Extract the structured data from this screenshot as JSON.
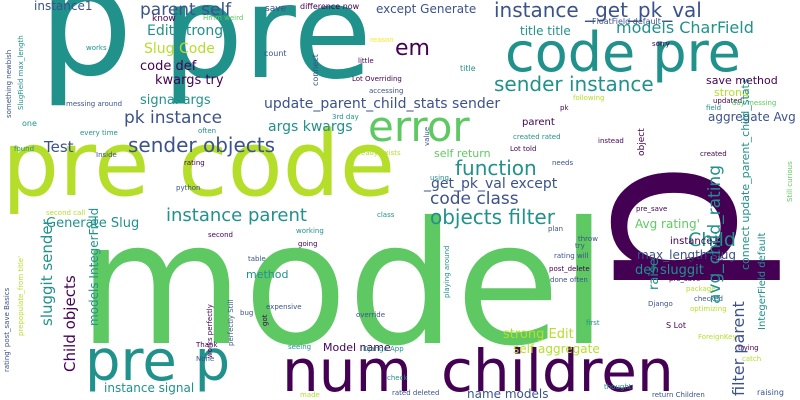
{
  "palette": {
    "dark_purple": "#440154",
    "indigo": "#3b528b",
    "teal": "#21918c",
    "green": "#5ec962",
    "lime": "#b5de2b",
    "yellow": "#fde725"
  },
  "words": [
    {
      "text": "model",
      "color": "#5ec962",
      "orientation": "horizontal"
    },
    {
      "text": "p",
      "color": "#21918c",
      "orientation": "horizontal"
    },
    {
      "text": "pre",
      "color": "#21918c",
      "orientation": "horizontal"
    },
    {
      "text": "pre code",
      "color": "#b5de2b",
      "orientation": "horizontal"
    },
    {
      "text": "code pre",
      "color": "#21918c",
      "orientation": "horizontal"
    },
    {
      "text": "p",
      "color": "#440154",
      "orientation": "vertical"
    },
    {
      "text": "num_children",
      "color": "#440154",
      "orientation": "horizontal"
    },
    {
      "text": "pre p",
      "color": "#21918c",
      "orientation": "horizontal"
    },
    {
      "text": "error",
      "color": "#5ec962",
      "orientation": "horizontal"
    },
    {
      "text": "instance _get_pk_val",
      "color": "#3b528b",
      "orientation": "horizontal"
    },
    {
      "text": "models CharField",
      "color": "#21918c",
      "orientation": "horizontal"
    },
    {
      "text": "sender instance",
      "color": "#21918c",
      "orientation": "horizontal"
    },
    {
      "text": "em",
      "color": "#440154",
      "orientation": "horizontal"
    },
    {
      "text": "parent self",
      "color": "#3b528b",
      "orientation": "horizontal"
    },
    {
      "text": "Edit strong",
      "color": "#21918c",
      "orientation": "horizontal"
    },
    {
      "text": "Slug Code",
      "color": "#b5de2b",
      "orientation": "horizontal"
    },
    {
      "text": "code def",
      "color": "#440154",
      "orientation": "horizontal"
    },
    {
      "text": "kwargs try",
      "color": "#440154",
      "orientation": "horizontal"
    },
    {
      "text": "signal args",
      "color": "#21918c",
      "orientation": "horizontal"
    },
    {
      "text": "update_parent_child_stats sender",
      "color": "#3b528b",
      "orientation": "horizontal"
    },
    {
      "text": "pk instance",
      "color": "#3b528b",
      "orientation": "horizontal"
    },
    {
      "text": "args kwargs",
      "color": "#21918c",
      "orientation": "horizontal"
    },
    {
      "text": "sender objects",
      "color": "#3b528b",
      "orientation": "horizontal"
    },
    {
      "text": "Test",
      "color": "#3b528b",
      "orientation": "horizontal"
    },
    {
      "text": "function",
      "color": "#21918c",
      "orientation": "horizontal"
    },
    {
      "text": "_get_pk_val except",
      "color": "#3b528b",
      "orientation": "horizontal"
    },
    {
      "text": "code class",
      "color": "#3b528b",
      "orientation": "horizontal"
    },
    {
      "text": "objects filter",
      "color": "#21918c",
      "orientation": "horizontal"
    },
    {
      "text": "instance parent",
      "color": "#21918c",
      "orientation": "horizontal"
    },
    {
      "text": "Generate Slug",
      "color": "#21918c",
      "orientation": "horizontal"
    },
    {
      "text": "Child",
      "color": "#21918c",
      "orientation": "horizontal"
    },
    {
      "text": "Avg rating'",
      "color": "#5ec962",
      "orientation": "horizontal"
    },
    {
      "text": "max_length slug",
      "color": "#3b528b",
      "orientation": "horizontal"
    },
    {
      "text": "def sluggit",
      "color": "#21918c",
      "orientation": "horizontal"
    },
    {
      "text": "strong Edit",
      "color": "#b5de2b",
      "orientation": "horizontal"
    },
    {
      "text": "Model name",
      "color": "#440154",
      "orientation": "horizontal"
    },
    {
      "text": "self aggregate",
      "color": "#b5de2b",
      "orientation": "horizontal"
    },
    {
      "text": "instance signal",
      "color": "#21918c",
      "orientation": "horizontal"
    },
    {
      "text": "name models",
      "color": "#3b528b",
      "orientation": "horizontal"
    },
    {
      "text": "except Generate",
      "color": "#3b528b",
      "orientation": "horizontal"
    },
    {
      "text": "title title",
      "color": "#21918c",
      "orientation": "horizontal"
    },
    {
      "text": "aggregate Avg",
      "color": "#3b528b",
      "orientation": "horizontal"
    },
    {
      "text": "save method",
      "color": "#440154",
      "orientation": "horizontal"
    },
    {
      "text": "strong",
      "color": "#b5de2b",
      "orientation": "horizontal"
    },
    {
      "text": "instance1",
      "color": "#3b528b",
      "orientation": "horizontal"
    },
    {
      "text": "know",
      "color": "#440154",
      "orientation": "horizontal"
    },
    {
      "text": "Hmm weird",
      "color": "#5ec962",
      "orientation": "horizontal"
    },
    {
      "text": "save",
      "color": "#3b528b",
      "orientation": "horizontal"
    },
    {
      "text": "difference now",
      "color": "#440154",
      "orientation": "horizontal"
    },
    {
      "text": "FloatField default",
      "color": "#3b528b",
      "orientation": "horizontal"
    },
    {
      "text": "sorry",
      "color": "#440154",
      "orientation": "horizontal"
    },
    {
      "text": "count",
      "color": "#3b528b",
      "orientation": "horizontal"
    },
    {
      "text": "reason",
      "color": "#fde725",
      "orientation": "horizontal"
    },
    {
      "text": "little",
      "color": "#440154",
      "orientation": "horizontal"
    },
    {
      "text": "title",
      "color": "#21918c",
      "orientation": "horizontal"
    },
    {
      "text": "Lot Overriding",
      "color": "#440154",
      "orientation": "horizontal"
    },
    {
      "text": "accessing",
      "color": "#3b528b",
      "orientation": "horizontal"
    },
    {
      "text": "messing around",
      "color": "#3b528b",
      "orientation": "horizontal"
    },
    {
      "text": "every time",
      "color": "#21918c",
      "orientation": "horizontal"
    },
    {
      "text": "often",
      "color": "#21918c",
      "orientation": "horizontal"
    },
    {
      "text": "3rd day",
      "color": "#21918c",
      "orientation": "horizontal"
    },
    {
      "text": "one",
      "color": "#21918c",
      "orientation": "horizontal"
    },
    {
      "text": "found",
      "color": "#21918c",
      "orientation": "horizontal"
    },
    {
      "text": "Inside",
      "color": "#3b528b",
      "orientation": "horizontal"
    },
    {
      "text": "rating",
      "color": "#440154",
      "orientation": "horizontal"
    },
    {
      "text": "python",
      "color": "#3b528b",
      "orientation": "horizontal"
    },
    {
      "text": "second call",
      "color": "#b5de2b",
      "orientation": "horizontal"
    },
    {
      "text": "second",
      "color": "#440154",
      "orientation": "horizontal"
    },
    {
      "text": "working",
      "color": "#21918c",
      "orientation": "horizontal"
    },
    {
      "text": "going",
      "color": "#440154",
      "orientation": "horizontal"
    },
    {
      "text": "table",
      "color": "#3b528b",
      "orientation": "horizontal"
    },
    {
      "text": "method",
      "color": "#21918c",
      "orientation": "horizontal"
    },
    {
      "text": "bug",
      "color": "#3b528b",
      "orientation": "horizontal"
    },
    {
      "text": "expensive",
      "color": "#3b528b",
      "orientation": "horizontal"
    },
    {
      "text": "Thank",
      "color": "#440154",
      "orientation": "horizontal"
    },
    {
      "text": "None",
      "color": "#3b528b",
      "orientation": "horizontal"
    },
    {
      "text": "seeing",
      "color": "#21918c",
      "orientation": "horizontal"
    },
    {
      "text": "Django App",
      "color": "#21918c",
      "orientation": "horizontal"
    },
    {
      "text": "check",
      "color": "#21918c",
      "orientation": "horizontal"
    },
    {
      "text": "made",
      "color": "#b5de2b",
      "orientation": "horizontal"
    },
    {
      "text": "rated deleted",
      "color": "#3b528b",
      "orientation": "horizontal"
    },
    {
      "text": "thought",
      "color": "#21918c",
      "orientation": "horizontal"
    },
    {
      "text": "return Children",
      "color": "#3b528b",
      "orientation": "horizontal"
    },
    {
      "text": "raising",
      "color": "#3b528b",
      "orientation": "horizontal"
    },
    {
      "text": "parent",
      "color": "#440154",
      "orientation": "horizontal"
    },
    {
      "text": "created rated",
      "color": "#21918c",
      "orientation": "horizontal"
    },
    {
      "text": "Lot told",
      "color": "#440154",
      "orientation": "horizontal"
    },
    {
      "text": "self return",
      "color": "#5ec962",
      "orientation": "horizontal"
    },
    {
      "text": "already exists",
      "color": "#b5de2b",
      "orientation": "horizontal"
    },
    {
      "text": "needs",
      "color": "#3b528b",
      "orientation": "horizontal"
    },
    {
      "text": "using",
      "color": "#21918c",
      "orientation": "horizontal"
    },
    {
      "text": "instead",
      "color": "#440154",
      "orientation": "horizontal"
    },
    {
      "text": "created",
      "color": "#440154",
      "orientation": "horizontal"
    },
    {
      "text": "pre_save",
      "color": "#440154",
      "orientation": "horizontal"
    },
    {
      "text": "pre_save'",
      "color": "#440154",
      "orientation": "horizontal"
    },
    {
      "text": "plan",
      "color": "#3b528b",
      "orientation": "horizontal"
    },
    {
      "text": "throw",
      "color": "#3b528b",
      "orientation": "horizontal"
    },
    {
      "text": "try",
      "color": "#3b528b",
      "orientation": "horizontal"
    },
    {
      "text": "rating will",
      "color": "#3b528b",
      "orientation": "horizontal"
    },
    {
      "text": "post_delete",
      "color": "#440154",
      "orientation": "horizontal"
    },
    {
      "text": "done often",
      "color": "#3b528b",
      "orientation": "horizontal"
    },
    {
      "text": "first",
      "color": "#21918c",
      "orientation": "horizontal"
    },
    {
      "text": "instance2",
      "color": "#440154",
      "orientation": "horizontal"
    },
    {
      "text": "comments",
      "color": "#440154",
      "orientation": "horizontal"
    },
    {
      "text": "package",
      "color": "#b5de2b",
      "orientation": "horizontal"
    },
    {
      "text": "checked",
      "color": "#3b528b",
      "orientation": "horizontal"
    },
    {
      "text": "Django",
      "color": "#3b528b",
      "orientation": "horizontal"
    },
    {
      "text": "optimizing",
      "color": "#b5de2b",
      "orientation": "horizontal"
    },
    {
      "text": "S Lot",
      "color": "#440154",
      "orientation": "horizontal"
    },
    {
      "text": "ForeignKey",
      "color": "#b5de2b",
      "orientation": "horizontal"
    },
    {
      "text": "trying",
      "color": "#440154",
      "orientation": "horizontal"
    },
    {
      "text": "catch",
      "color": "#b5de2b",
      "orientation": "horizontal"
    },
    {
      "text": "override",
      "color": "#3b528b",
      "orientation": "horizontal"
    },
    {
      "text": "updated",
      "color": "#440154",
      "orientation": "horizontal"
    },
    {
      "text": "field",
      "color": "#21918c",
      "orientation": "horizontal"
    },
    {
      "text": "day messing",
      "color": "#5ec962",
      "orientation": "horizontal"
    },
    {
      "text": "following",
      "color": "#b5de2b",
      "orientation": "horizontal"
    },
    {
      "text": "pk",
      "color": "#440154",
      "orientation": "horizontal"
    },
    {
      "text": "works",
      "color": "#21918c",
      "orientation": "horizontal"
    },
    {
      "text": "avg_child_rating",
      "color": "#21918c",
      "orientation": "vertical"
    },
    {
      "text": "filter parent",
      "color": "#3b528b",
      "orientation": "vertical"
    },
    {
      "text": "connect update_parent_child_stats",
      "color": "#21918c",
      "orientation": "vertical"
    },
    {
      "text": "IntegerField default",
      "color": "#21918c",
      "orientation": "vertical"
    },
    {
      "text": "Child objects",
      "color": "#440154",
      "orientation": "vertical"
    },
    {
      "text": "sluggit sender",
      "color": "#21918c",
      "orientation": "vertical"
    },
    {
      "text": "models IntegerField",
      "color": "#21918c",
      "orientation": "vertical"
    },
    {
      "text": "raise",
      "color": "#21918c",
      "orientation": "vertical"
    },
    {
      "text": "object",
      "color": "#440154",
      "orientation": "vertical"
    },
    {
      "text": "connect",
      "color": "#3b528b",
      "orientation": "vertical"
    },
    {
      "text": "SlugField max_length",
      "color": "#21918c",
      "orientation": "vertical"
    },
    {
      "text": "something newbish",
      "color": "#3b528b",
      "orientation": "vertical"
    },
    {
      "text": "Still curious",
      "color": "#5ec962",
      "orientation": "vertical"
    },
    {
      "text": "rating' post_save Basics",
      "color": "#3b528b",
      "orientation": "vertical"
    },
    {
      "text": "prepopulate_from title'",
      "color": "#b5de2b",
      "orientation": "vertical"
    },
    {
      "text": "works perfectly",
      "color": "#440154",
      "orientation": "vertical"
    },
    {
      "text": "perfectly Still",
      "color": "#3b528b",
      "orientation": "vertical"
    },
    {
      "text": "got",
      "color": "#440154",
      "orientation": "vertical"
    },
    {
      "text": "value",
      "color": "#3b528b",
      "orientation": "vertical"
    },
    {
      "text": "playing around",
      "color": "#21918c",
      "orientation": "vertical"
    },
    {
      "text": "class",
      "color": "#21918c",
      "orientation": "horizontal"
    }
  ]
}
